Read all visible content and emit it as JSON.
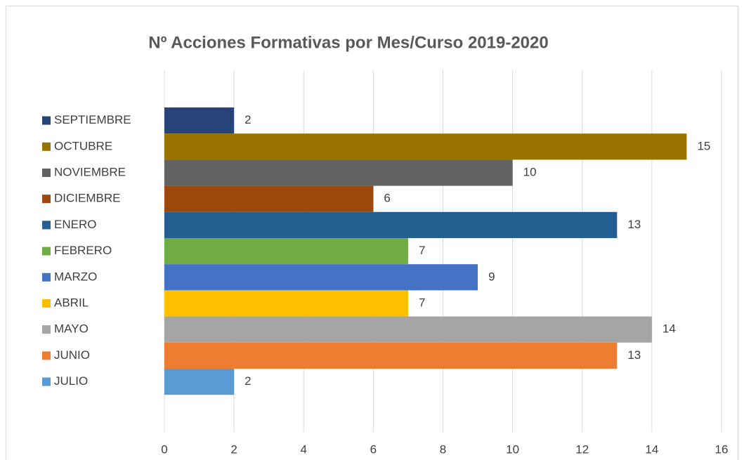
{
  "chart_data": {
    "type": "bar",
    "orientation": "horizontal",
    "title": "Nº Acciones Formativas por Mes/Curso 2019-2020",
    "series": [
      {
        "name": "SEPTIEMBRE",
        "color": "#264478",
        "values": [
          2
        ]
      },
      {
        "name": "OCTUBRE",
        "color": "#997300",
        "values": [
          15
        ]
      },
      {
        "name": "NOVIEMBRE",
        "color": "#636363",
        "values": [
          10
        ]
      },
      {
        "name": "DICIEMBRE",
        "color": "#9e480e",
        "values": [
          6
        ]
      },
      {
        "name": "ENERO",
        "color": "#255e91",
        "values": [
          13
        ]
      },
      {
        "name": "FEBRERO",
        "color": "#70ad47",
        "values": [
          7
        ]
      },
      {
        "name": "MARZO",
        "color": "#4472c4",
        "values": [
          9
        ]
      },
      {
        "name": "ABRIL",
        "color": "#ffc000",
        "values": [
          7
        ]
      },
      {
        "name": "MAYO",
        "color": "#a5a5a5",
        "values": [
          14
        ]
      },
      {
        "name": "JUNIO",
        "color": "#ed7d31",
        "values": [
          13
        ]
      },
      {
        "name": "JULIO",
        "color": "#5b9bd5",
        "values": [
          2
        ]
      }
    ],
    "xlim": [
      0,
      16
    ],
    "xticks": [
      0,
      2,
      4,
      6,
      8,
      10,
      12,
      14,
      16
    ],
    "grid": true,
    "legend": "left",
    "data_labels": true
  }
}
